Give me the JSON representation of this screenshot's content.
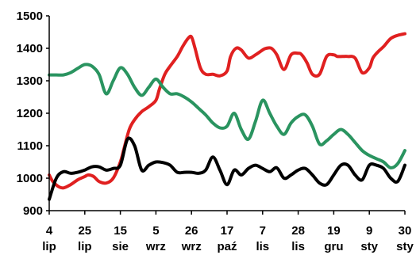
{
  "chart_data": {
    "type": "line",
    "title": "",
    "xlabel": "",
    "ylabel": "",
    "ylim": [
      900,
      1500
    ],
    "yticks": [
      900,
      1000,
      1100,
      1200,
      1300,
      1400,
      1500
    ],
    "grid": false,
    "legend": "none",
    "x_ticks": [
      {
        "day": "4",
        "month": "lip"
      },
      {
        "day": "25",
        "month": "lip"
      },
      {
        "day": "15",
        "month": "sie"
      },
      {
        "day": "5",
        "month": "wrz"
      },
      {
        "day": "26",
        "month": "wrz"
      },
      {
        "day": "17",
        "month": "paź"
      },
      {
        "day": "7",
        "month": "lis"
      },
      {
        "day": "28",
        "month": "lis"
      },
      {
        "day": "19",
        "month": "gru"
      },
      {
        "day": "9",
        "month": "sty"
      },
      {
        "day": "30",
        "month": "sty"
      }
    ],
    "series": [
      {
        "color": "#e02020",
        "x": [
          0,
          0.1,
          0.25,
          0.4,
          0.6,
          0.8,
          1,
          1.1,
          1.25,
          1.4,
          1.6,
          1.8,
          2,
          2.1,
          2.25,
          2.4,
          2.6,
          2.8,
          3,
          3.1,
          3.25,
          3.4,
          3.6,
          3.75,
          3.9,
          4,
          4.1,
          4.25,
          4.4,
          4.6,
          4.8,
          5,
          5.1,
          5.25,
          5.4,
          5.6,
          5.8,
          6,
          6.1,
          6.25,
          6.4,
          6.6,
          6.8,
          7,
          7.1,
          7.25,
          7.4,
          7.6,
          7.8,
          8,
          8.1,
          8.25,
          8.4,
          8.6,
          8.8,
          9,
          9.1,
          9.25,
          9.4,
          9.6,
          9.8,
          10
        ],
        "values": [
          1010,
          990,
          975,
          970,
          980,
          995,
          1005,
          1010,
          1005,
          990,
          985,
          1000,
          1050,
          1090,
          1150,
          1180,
          1205,
          1220,
          1240,
          1275,
          1320,
          1345,
          1375,
          1405,
          1430,
          1435,
          1400,
          1340,
          1320,
          1320,
          1315,
          1330,
          1375,
          1400,
          1395,
          1370,
          1380,
          1395,
          1400,
          1400,
          1380,
          1335,
          1380,
          1385,
          1380,
          1355,
          1320,
          1320,
          1375,
          1380,
          1375,
          1375,
          1375,
          1370,
          1325,
          1340,
          1370,
          1390,
          1405,
          1430,
          1440,
          1445
        ]
      },
      {
        "color": "#2a9460",
        "x": [
          0,
          0.2,
          0.4,
          0.6,
          0.8,
          1,
          1.2,
          1.4,
          1.6,
          1.8,
          2,
          2.2,
          2.4,
          2.6,
          2.8,
          3,
          3.2,
          3.4,
          3.6,
          3.8,
          4,
          4.2,
          4.4,
          4.6,
          4.8,
          5,
          5.2,
          5.4,
          5.6,
          5.8,
          6,
          6.2,
          6.4,
          6.6,
          6.8,
          7,
          7.2,
          7.4,
          7.6,
          7.8,
          8,
          8.2,
          8.4,
          8.6,
          8.8,
          9,
          9.2,
          9.4,
          9.6,
          9.8,
          10
        ],
        "values": [
          1318,
          1318,
          1318,
          1325,
          1338,
          1350,
          1345,
          1320,
          1260,
          1300,
          1340,
          1320,
          1280,
          1255,
          1280,
          1305,
          1280,
          1260,
          1260,
          1250,
          1235,
          1215,
          1195,
          1170,
          1155,
          1160,
          1200,
          1150,
          1120,
          1175,
          1240,
          1200,
          1160,
          1135,
          1170,
          1190,
          1195,
          1160,
          1105,
          1115,
          1135,
          1150,
          1135,
          1110,
          1085,
          1070,
          1060,
          1050,
          1032,
          1045,
          1085
        ]
      },
      {
        "color": "#000000",
        "x": [
          0,
          0.2,
          0.4,
          0.6,
          0.8,
          1,
          1.2,
          1.4,
          1.6,
          1.8,
          2,
          2.2,
          2.4,
          2.6,
          2.8,
          3,
          3.2,
          3.4,
          3.6,
          3.8,
          4,
          4.2,
          4.4,
          4.6,
          4.8,
          5,
          5.2,
          5.4,
          5.6,
          5.8,
          6,
          6.2,
          6.4,
          6.6,
          6.8,
          7,
          7.2,
          7.4,
          7.6,
          7.8,
          8,
          8.2,
          8.4,
          8.6,
          8.8,
          9,
          9.2,
          9.4,
          9.6,
          9.8,
          10
        ],
        "values": [
          935,
          1000,
          1020,
          1015,
          1018,
          1025,
          1035,
          1035,
          1025,
          1030,
          1040,
          1120,
          1100,
          1025,
          1040,
          1050,
          1048,
          1040,
          1018,
          1018,
          1018,
          1015,
          1025,
          1065,
          1025,
          980,
          1025,
          1010,
          1030,
          1040,
          1030,
          1020,
          1032,
          1000,
          1010,
          1025,
          1030,
          1010,
          985,
          980,
          1010,
          1040,
          1040,
          1010,
          995,
          1040,
          1040,
          1030,
          1000,
          990,
          1040
        ]
      }
    ]
  }
}
